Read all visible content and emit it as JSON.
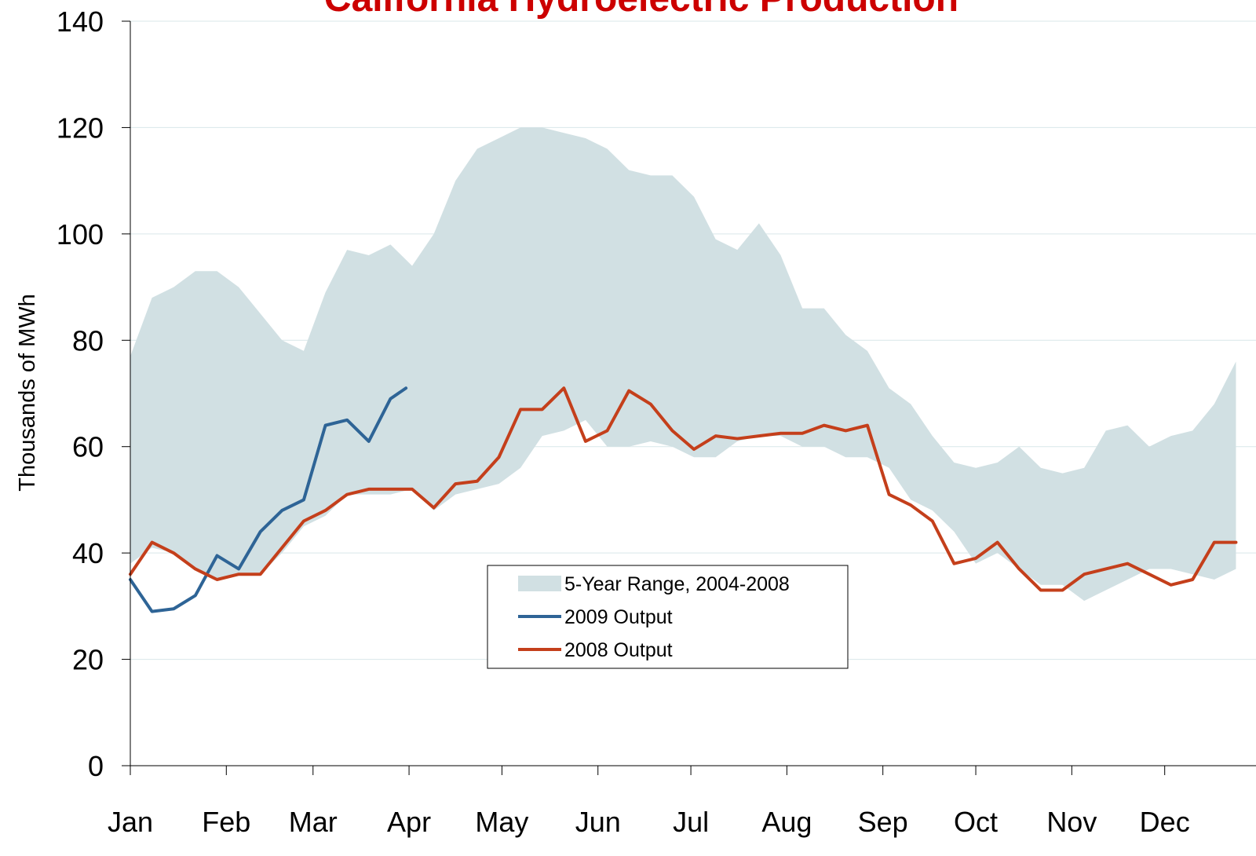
{
  "chart_data": {
    "type": "line",
    "title": "California Hydroelectric Production",
    "y_label": "Thousands of MWh",
    "xlim": [
      0,
      365
    ],
    "xticks": [
      {
        "value": 0,
        "label": "Jan"
      },
      {
        "value": 31,
        "label": "Feb"
      },
      {
        "value": 59,
        "label": "Mar"
      },
      {
        "value": 90,
        "label": "Apr"
      },
      {
        "value": 120,
        "label": "May"
      },
      {
        "value": 151,
        "label": "Jun"
      },
      {
        "value": 181,
        "label": "Jul"
      },
      {
        "value": 212,
        "label": "Aug"
      },
      {
        "value": 243,
        "label": "Sep"
      },
      {
        "value": 273,
        "label": "Oct"
      },
      {
        "value": 304,
        "label": "Nov"
      },
      {
        "value": 334,
        "label": "Dec"
      }
    ],
    "ylim": [
      0,
      140
    ],
    "yticks": [
      0,
      20,
      40,
      60,
      80,
      100,
      120,
      140
    ],
    "grid": true,
    "series": [
      {
        "name": "5-Year Range, 2004-2008",
        "type": "band",
        "color": "#d1e0e3",
        "x": [
          0,
          7,
          14,
          21,
          28,
          35,
          42,
          49,
          56,
          63,
          70,
          77,
          84,
          91,
          98,
          105,
          112,
          119,
          126,
          133,
          140,
          147,
          154,
          161,
          168,
          175,
          182,
          189,
          196,
          203,
          210,
          217,
          224,
          231,
          238,
          245,
          252,
          259,
          266,
          273,
          280,
          287,
          294,
          301,
          308,
          315,
          322,
          329,
          336,
          343,
          350,
          357
        ],
        "upper": [
          77,
          88,
          90,
          93,
          93,
          90,
          85,
          80,
          78,
          89,
          97,
          96,
          98,
          94,
          100,
          110,
          116,
          118,
          120,
          120,
          119,
          118,
          116,
          112,
          111,
          111,
          107,
          99,
          97,
          102,
          96,
          86,
          86,
          81,
          78,
          71,
          68,
          62,
          57,
          56,
          57,
          60,
          56,
          55,
          56,
          63,
          64,
          60,
          62,
          63,
          68,
          76
        ],
        "lower": [
          38,
          41,
          40,
          37,
          35,
          36,
          36,
          40,
          45,
          47,
          51,
          51,
          51,
          52,
          48,
          51,
          52,
          53,
          56,
          62,
          63,
          65,
          60,
          60,
          61,
          60,
          58,
          58,
          61,
          62,
          62,
          60,
          60,
          58,
          58,
          56,
          50,
          48,
          44,
          38,
          40,
          37,
          34,
          34,
          31,
          33,
          35,
          37,
          37,
          36,
          35,
          37
        ]
      },
      {
        "name": "2009 Output",
        "color": "#2e6496",
        "x": [
          0,
          7,
          14,
          21,
          28,
          35,
          42,
          49,
          56,
          63,
          70,
          77,
          84,
          89
        ],
        "values": [
          35,
          29,
          29.5,
          32,
          39.5,
          37,
          44,
          48,
          50,
          64,
          65,
          61,
          69,
          71
        ]
      },
      {
        "name": "2008 Output",
        "color": "#c43f1b",
        "x": [
          0,
          7,
          14,
          21,
          28,
          35,
          42,
          49,
          56,
          63,
          70,
          77,
          84,
          91,
          98,
          105,
          112,
          119,
          126,
          133,
          140,
          147,
          154,
          161,
          168,
          175,
          182,
          189,
          196,
          203,
          210,
          217,
          224,
          231,
          238,
          245,
          252,
          259,
          266,
          273,
          280,
          287,
          294,
          301,
          308,
          315,
          322,
          329,
          336,
          343,
          350,
          357
        ],
        "values": [
          36,
          42,
          40,
          37,
          35,
          36,
          36,
          41,
          46,
          48,
          51,
          52,
          52,
          52,
          48.5,
          53,
          53.5,
          58,
          67,
          67,
          71,
          61,
          63,
          70.5,
          68,
          63,
          59.5,
          62,
          61.5,
          62,
          62.5,
          62.5,
          64,
          63,
          64,
          51,
          49,
          46,
          38,
          39,
          42,
          37,
          33,
          33,
          36,
          37,
          38,
          36,
          34,
          35,
          42,
          42
        ]
      }
    ]
  }
}
